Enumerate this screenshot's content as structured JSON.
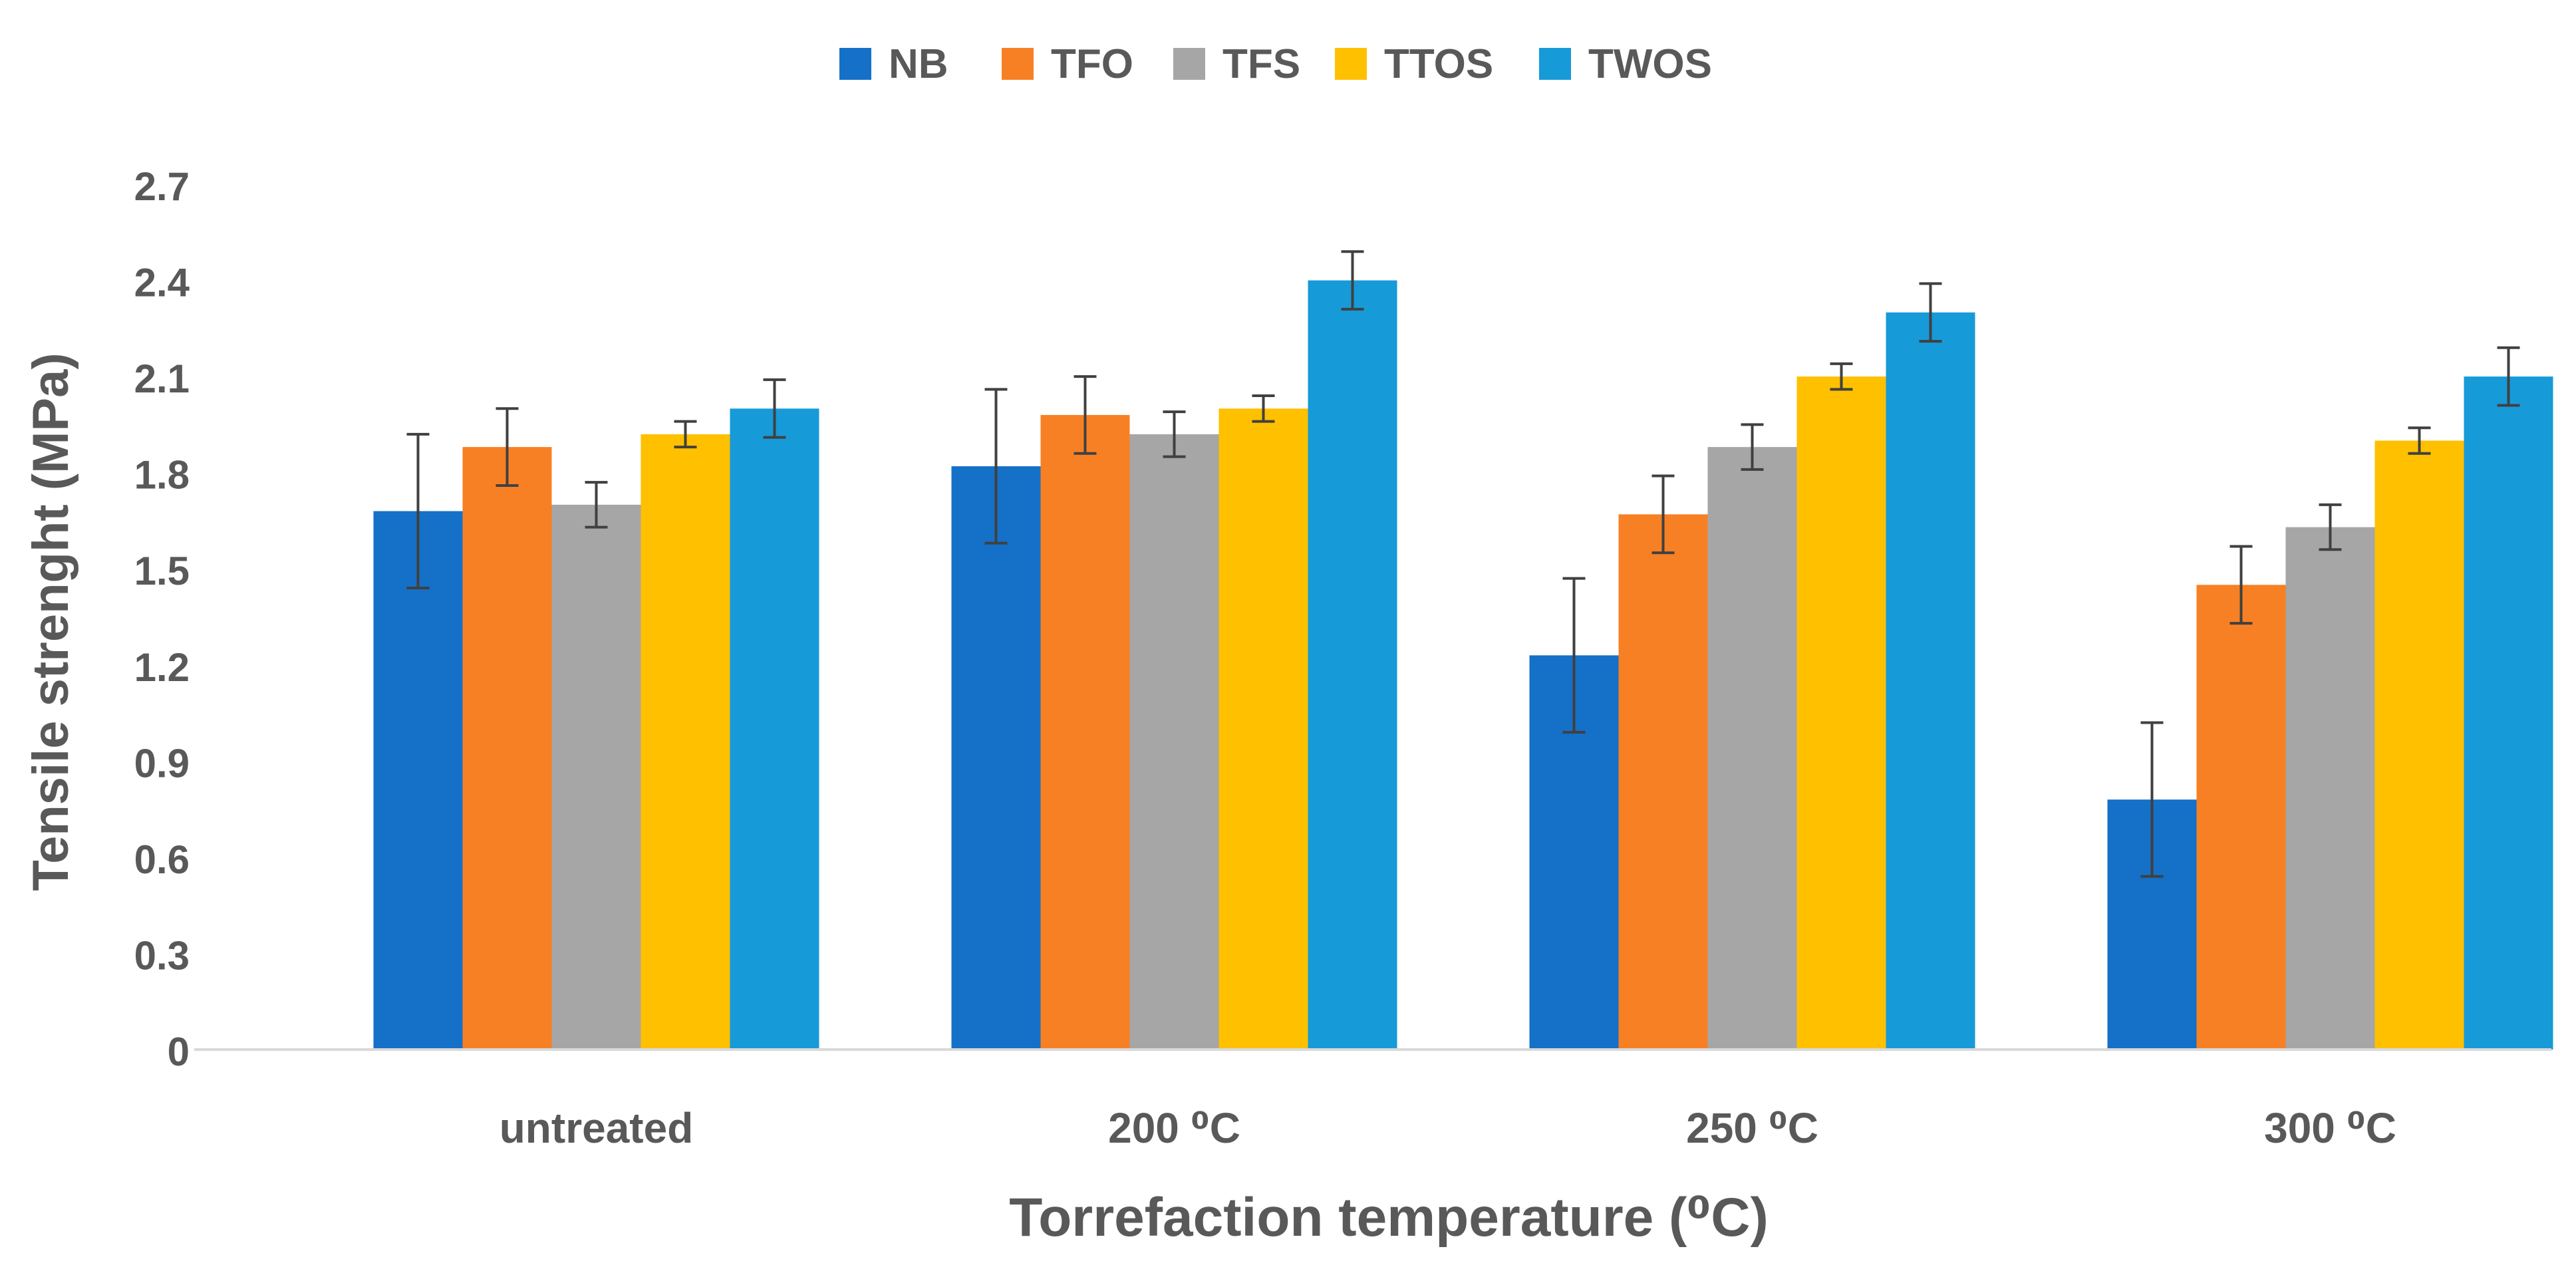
{
  "chart_data": {
    "type": "bar",
    "title": "",
    "xlabel": "Torrefaction temperature (⁰C)",
    "ylabel": "Tensile strenght (MPa)",
    "ylim": [
      0,
      2.7
    ],
    "yticks": [
      "0",
      "0.3",
      "0.6",
      "0.9",
      "1.2",
      "1.5",
      "1.8",
      "2.1",
      "2.4",
      "2.7"
    ],
    "grid": false,
    "legend_position": "top",
    "categories": [
      "untreated",
      "200 ⁰C",
      "250 ⁰C",
      "300 ⁰C"
    ],
    "series": [
      {
        "name": "NB",
        "color": "#1570c8",
        "values": [
          1.68,
          1.82,
          1.23,
          0.78
        ],
        "errors": [
          0.24,
          0.24,
          0.24,
          0.24
        ]
      },
      {
        "name": "TFO",
        "color": "#f88024",
        "values": [
          1.88,
          1.98,
          1.67,
          1.45
        ],
        "errors": [
          0.12,
          0.12,
          0.12,
          0.12
        ]
      },
      {
        "name": "TFS",
        "color": "#a6a6a6",
        "values": [
          1.7,
          1.92,
          1.88,
          1.63
        ],
        "errors": [
          0.07,
          0.07,
          0.07,
          0.07
        ]
      },
      {
        "name": "TTOS",
        "color": "#ffc000",
        "values": [
          1.92,
          2.0,
          2.1,
          1.9
        ],
        "errors": [
          0.04,
          0.04,
          0.04,
          0.04
        ]
      },
      {
        "name": "TWOS",
        "color": "#179ad8",
        "values": [
          2.0,
          2.4,
          2.3,
          2.1
        ],
        "errors": [
          0.09,
          0.09,
          0.09,
          0.09
        ]
      }
    ]
  }
}
